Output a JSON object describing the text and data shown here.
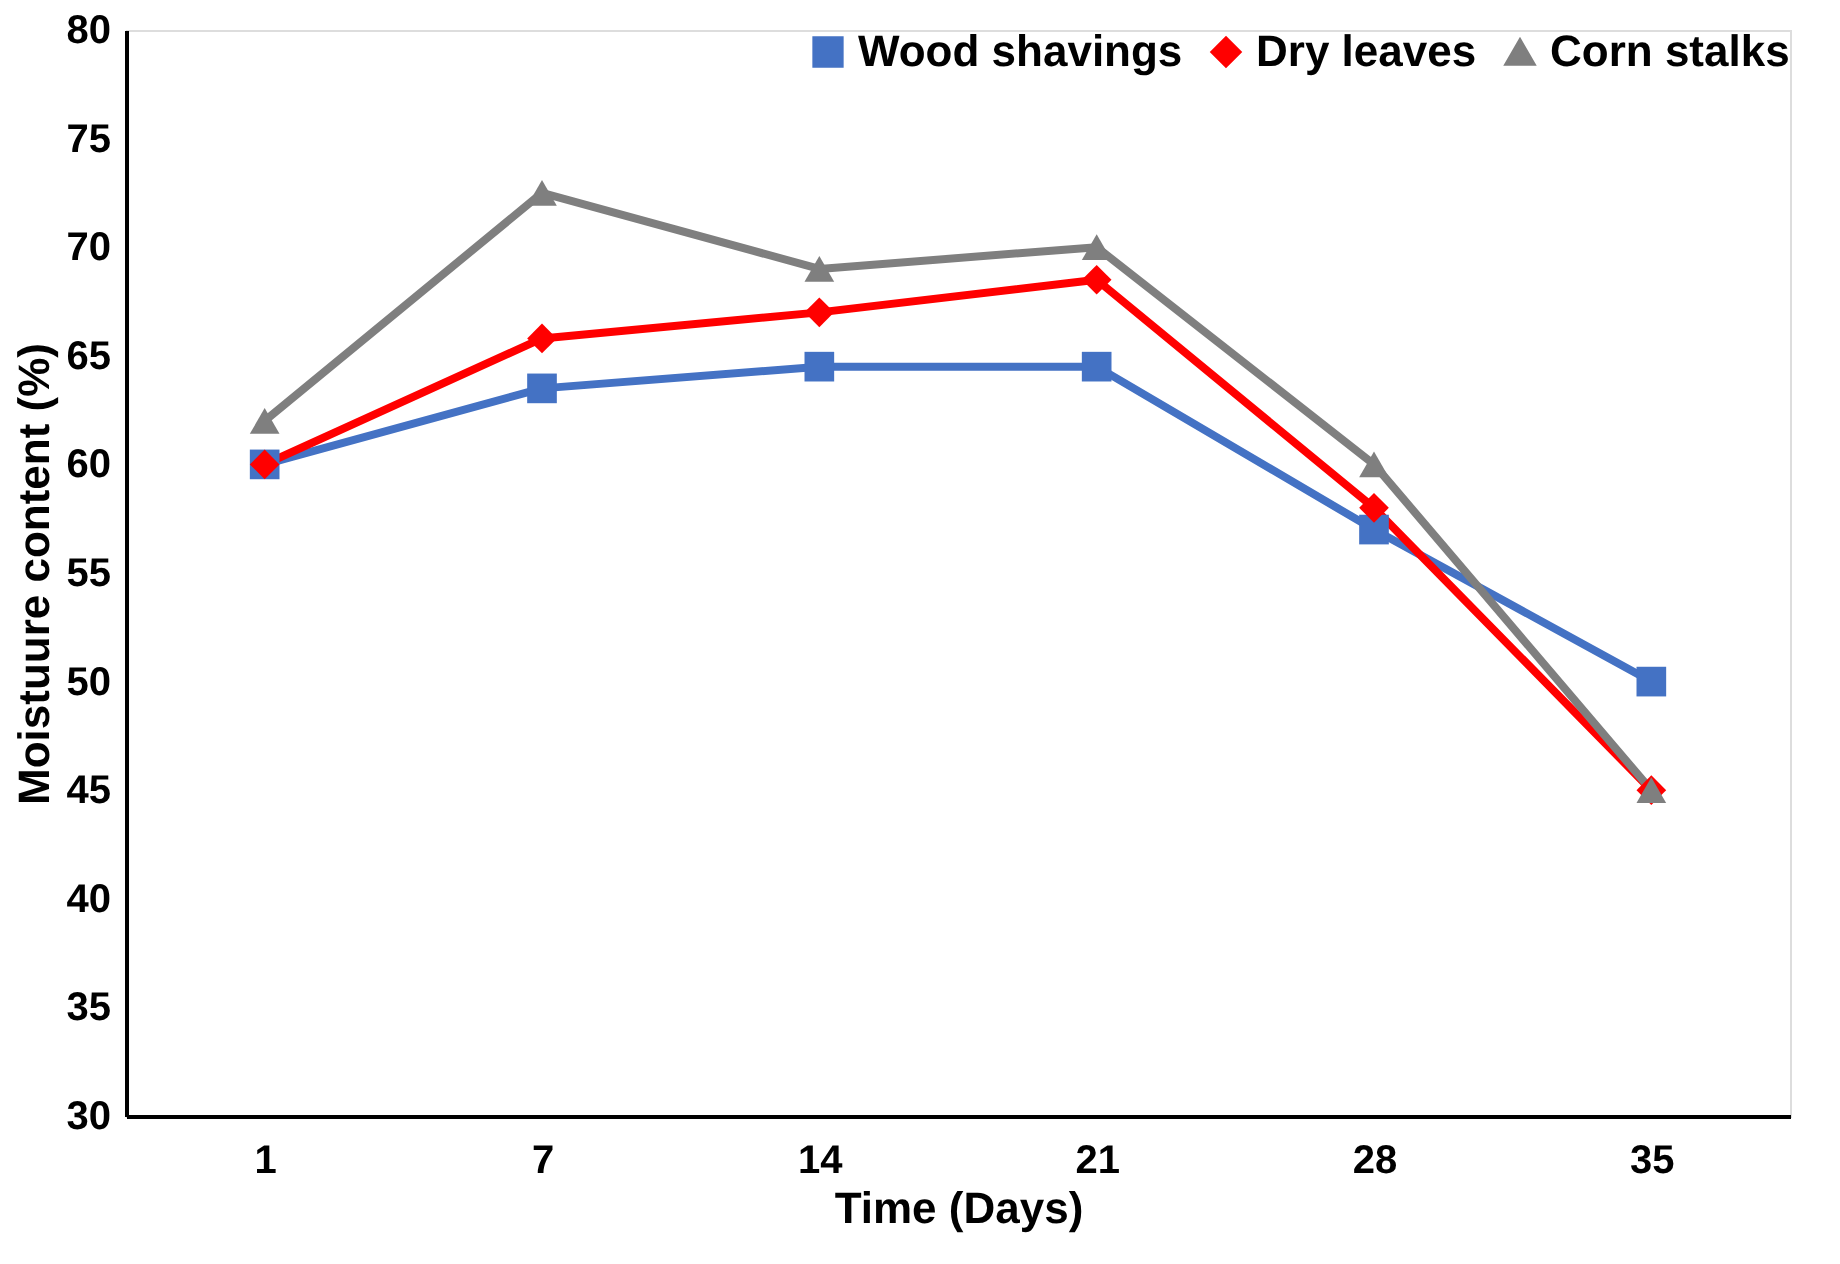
{
  "chart_data": {
    "type": "line",
    "xlabel": "Time (Days)",
    "ylabel": "Moistuure content (%)",
    "categories": [
      "1",
      "7",
      "14",
      "21",
      "28",
      "35"
    ],
    "series": [
      {
        "name": "Wood shavings",
        "color": "#4472c4",
        "marker": "square",
        "values": [
          60,
          63.5,
          64.5,
          64.5,
          57,
          50
        ]
      },
      {
        "name": "Dry leaves",
        "color": "#ff0000",
        "marker": "diamond",
        "values": [
          60,
          65.8,
          67,
          68.5,
          58,
          45
        ]
      },
      {
        "name": "Corn stalks",
        "color": "#7f7f7f",
        "marker": "triangle",
        "values": [
          62,
          72.5,
          69,
          70,
          60,
          45
        ]
      }
    ],
    "ylim": [
      30,
      80
    ],
    "yticks": [
      30,
      35,
      40,
      45,
      50,
      55,
      60,
      65,
      70,
      75,
      80
    ],
    "grid": false,
    "legend": "top right",
    "line_style": "solid"
  }
}
